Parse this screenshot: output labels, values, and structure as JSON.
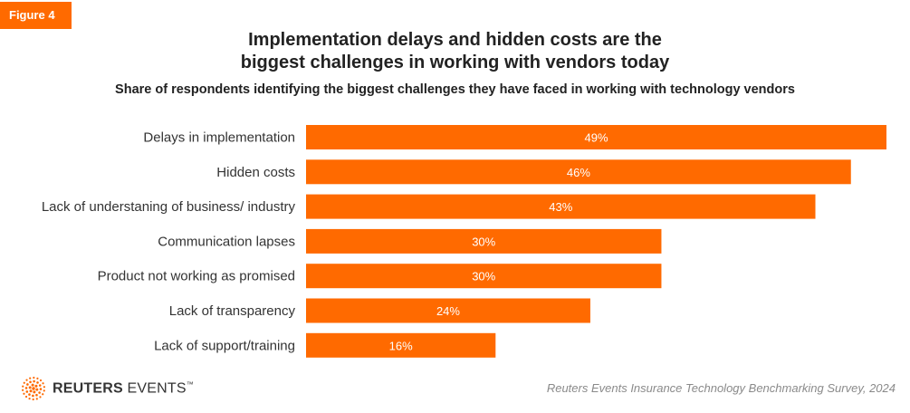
{
  "figure_label": "Figure 4",
  "title_line1": "Implementation delays and hidden costs are the",
  "title_line2": "biggest challenges in working with vendors today",
  "subtitle": "Share of respondents identifying the biggest challenges they have faced in working with technology vendors",
  "colors": {
    "accent": "#ff6a00",
    "bar": "#ff6a00",
    "bar_label": "#ffffff",
    "category_label": "#333333",
    "source": "#8a8a8a"
  },
  "chart_data": {
    "type": "bar",
    "orientation": "horizontal",
    "title": "Implementation delays and hidden costs are the biggest challenges in working with vendors today",
    "subtitle": "Share of respondents identifying the biggest challenges they have faced in working with technology vendors",
    "categories": [
      "Delays in implementation",
      "Hidden costs",
      "Lack of understaning of business/ industry",
      "Communication lapses",
      "Product not working as promised",
      "Lack of transparency",
      "Lack of support/training"
    ],
    "values": [
      49,
      46,
      43,
      30,
      30,
      24,
      16
    ],
    "value_labels": [
      "49%",
      "46%",
      "43%",
      "30%",
      "30%",
      "24%",
      "16%"
    ],
    "xlim": [
      0,
      49
    ],
    "grid": false,
    "legend": "none"
  },
  "footer": {
    "logo_bold": "REUTERS",
    "logo_regular": "EVENTS",
    "logo_mark": "™",
    "logo_icon": "reuters-dot-sphere-icon",
    "source": "Reuters Events Insurance Technology Benchmarking Survey, 2024"
  }
}
